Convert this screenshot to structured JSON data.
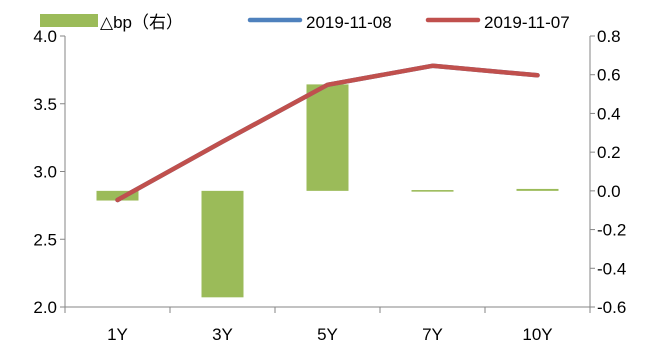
{
  "chart_data": {
    "type": "bar+line",
    "categories": [
      "1Y",
      "3Y",
      "5Y",
      "7Y",
      "10Y"
    ],
    "series": [
      {
        "name": "△bp（右）",
        "type": "bar",
        "axis": "right",
        "color": "#9bbb59",
        "values": [
          -0.05,
          -0.55,
          0.55,
          0.0,
          0.01
        ]
      },
      {
        "name": "2019-11-08",
        "type": "line",
        "axis": "left",
        "color": "#4f81bd",
        "values": [
          2.79,
          3.22,
          3.64,
          3.78,
          3.71
        ]
      },
      {
        "name": "2019-11-07",
        "type": "line",
        "axis": "left",
        "color": "#c0504d",
        "values": [
          2.79,
          3.22,
          3.64,
          3.78,
          3.71
        ]
      }
    ],
    "y_left": {
      "ylim": [
        2.0,
        4.0
      ],
      "ticks": [
        "2.0",
        "2.5",
        "3.0",
        "3.5",
        "4.0"
      ]
    },
    "y_right": {
      "ylim": [
        -0.6,
        0.8
      ],
      "ticks": [
        "-0.6",
        "-0.4",
        "-0.2",
        "0.0",
        "0.2",
        "0.4",
        "0.6",
        "0.8"
      ],
      "negative_color": "#ff0000",
      "positive_color": "#000000"
    },
    "legend_position": "top",
    "grid": false
  }
}
